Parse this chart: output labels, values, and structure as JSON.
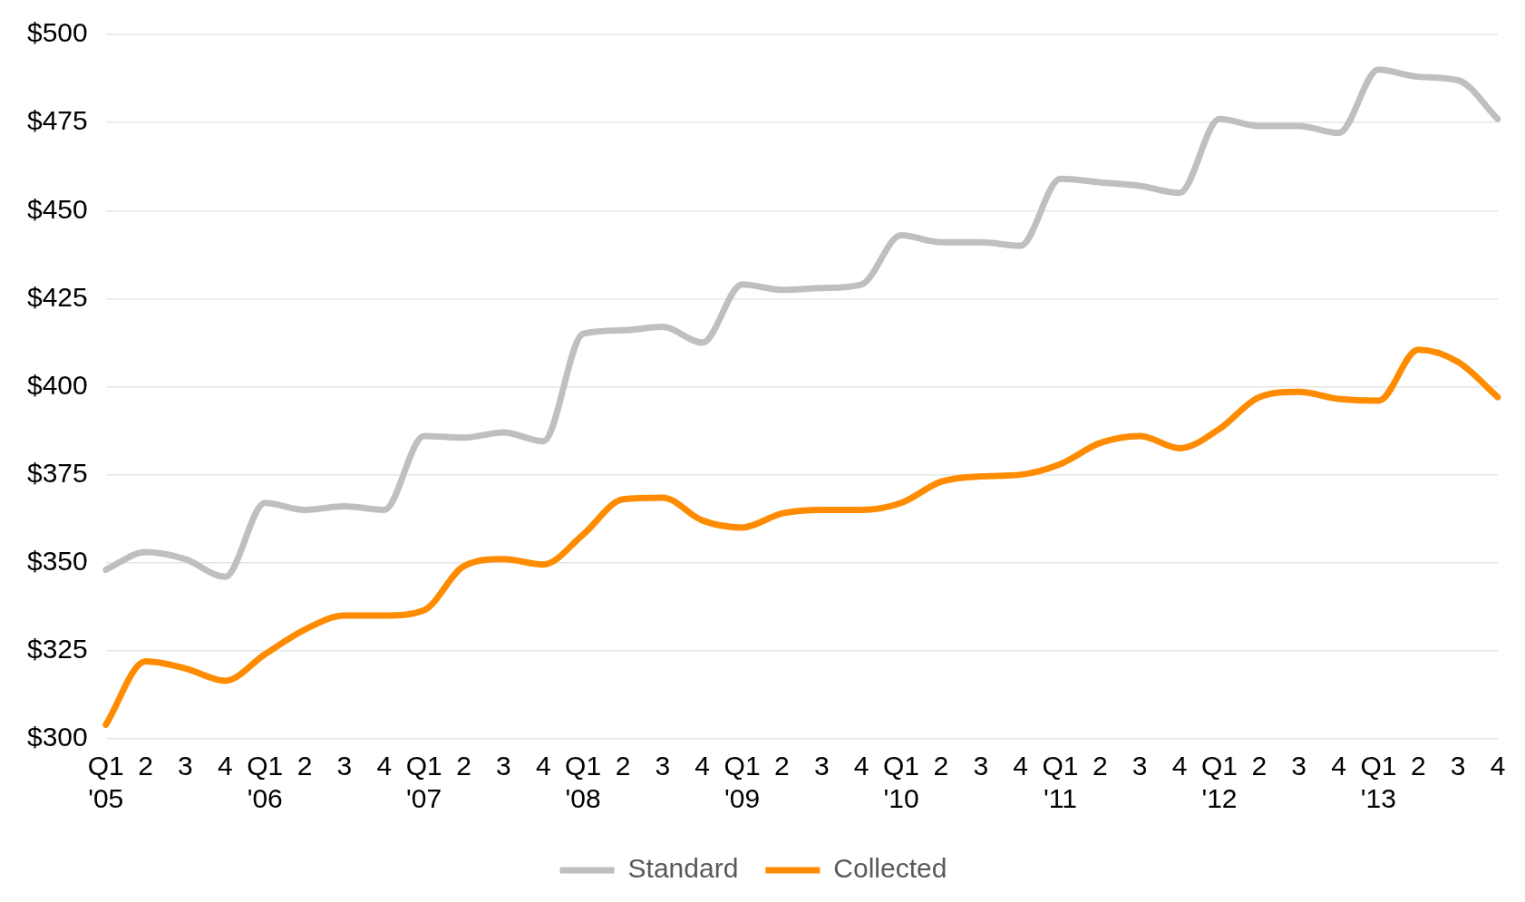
{
  "chart_data": {
    "type": "line",
    "categories": [
      "Q1\n'05",
      "2",
      "3",
      "4",
      "Q1\n'06",
      "2",
      "3",
      "4",
      "Q1\n'07",
      "2",
      "3",
      "4",
      "Q1\n'08",
      "2",
      "3",
      "4",
      "Q1\n'09",
      "2",
      "3",
      "4",
      "Q1\n'10",
      "2",
      "3",
      "4",
      "Q1\n'11",
      "2",
      "3",
      "4",
      "Q1\n'12",
      "2",
      "3",
      "4",
      "Q1\n'13",
      "2",
      "3",
      "4"
    ],
    "series": [
      {
        "name": "Standard",
        "color": "#bfbfbf",
        "values": [
          348,
          353,
          351,
          346,
          367,
          365,
          366,
          365,
          386,
          385.5,
          387,
          384.5,
          415,
          416,
          417,
          412.5,
          429,
          427.5,
          428,
          429,
          443,
          441,
          441,
          440,
          459,
          458,
          457,
          455,
          476,
          474,
          474,
          472,
          490,
          488,
          487,
          476
        ]
      },
      {
        "name": "Collected",
        "color": "#ff8c00",
        "values": [
          304,
          322,
          320,
          316.5,
          324,
          331,
          335,
          335,
          336.5,
          349,
          351,
          349.5,
          358,
          368,
          368.5,
          362,
          360,
          364,
          365,
          365,
          367,
          373,
          374.5,
          375,
          378,
          384,
          386,
          382.5,
          388,
          397,
          398.5,
          396.5,
          396,
          410.5,
          407,
          397
        ]
      }
    ],
    "ylim": [
      300,
      500
    ],
    "yticks": [
      {
        "value": 300,
        "label": "$300"
      },
      {
        "value": 325,
        "label": "$325"
      },
      {
        "value": 350,
        "label": "$350"
      },
      {
        "value": 375,
        "label": "$375"
      },
      {
        "value": 400,
        "label": "$400"
      },
      {
        "value": 425,
        "label": "$425"
      },
      {
        "value": 450,
        "label": "$450"
      },
      {
        "value": 475,
        "label": "$475"
      },
      {
        "value": 500,
        "label": "$500"
      }
    ],
    "grid": "y",
    "legend": "bottom",
    "marker": "none",
    "line_style": "solid"
  }
}
